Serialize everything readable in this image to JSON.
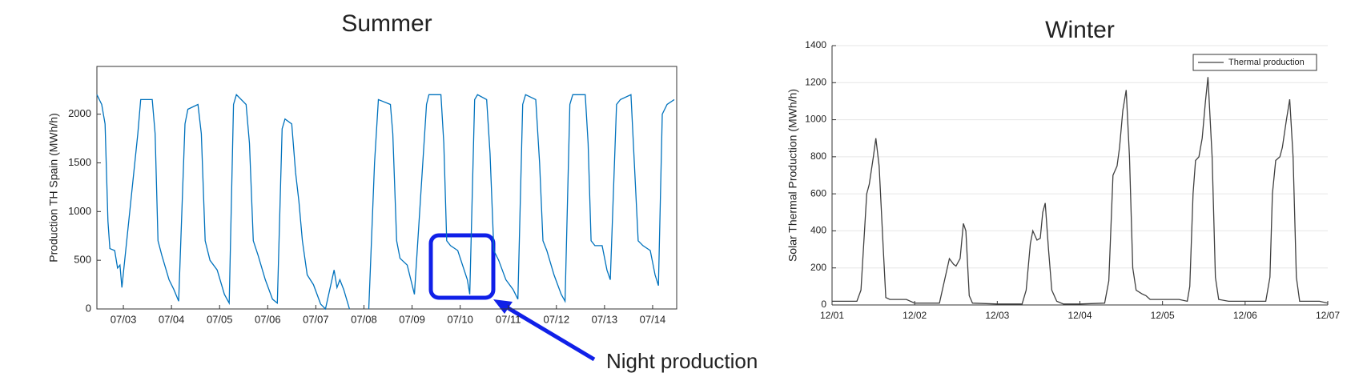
{
  "chart_data": [
    {
      "type": "line",
      "title": "Summer",
      "ylabel": "Production TH Spain (MWh/h)",
      "x": [
        2.45,
        2.55,
        2.62,
        2.68,
        2.72,
        2.82,
        2.88,
        2.93,
        2.97,
        3.3,
        3.36,
        3.6,
        3.66,
        3.72,
        3.8,
        3.95,
        4.05,
        4.15,
        4.28,
        4.34,
        4.55,
        4.62,
        4.7,
        4.8,
        4.95,
        5.1,
        5.2,
        5.29,
        5.35,
        5.55,
        5.62,
        5.7,
        5.8,
        5.95,
        6.1,
        6.2,
        6.3,
        6.36,
        6.5,
        6.58,
        6.65,
        6.72,
        6.82,
        6.95,
        7.1,
        7.2,
        7.38,
        7.44,
        7.5,
        7.58,
        7.7,
        7.9,
        8.1,
        8.22,
        8.3,
        8.55,
        8.6,
        8.68,
        8.75,
        8.9,
        9.05,
        9.3,
        9.35,
        9.6,
        9.66,
        9.72,
        9.8,
        9.95,
        10.15,
        10.2,
        10.3,
        10.36,
        10.55,
        10.62,
        10.7,
        10.8,
        10.95,
        11.1,
        11.2,
        11.3,
        11.36,
        11.57,
        11.65,
        11.72,
        11.8,
        11.95,
        12.1,
        12.18,
        12.28,
        12.34,
        12.6,
        12.66,
        12.72,
        12.8,
        12.95,
        13.05,
        13.12,
        13.25,
        13.33,
        13.55,
        13.62,
        13.7,
        13.8,
        13.95,
        14.05,
        14.12,
        14.2,
        14.3,
        14.45
      ],
      "series": [
        {
          "color": "#0072bd",
          "values": [
            2200,
            2100,
            1900,
            900,
            620,
            600,
            420,
            450,
            220,
            1800,
            2150,
            2150,
            1800,
            700,
            550,
            300,
            200,
            80,
            1900,
            2050,
            2100,
            1800,
            700,
            500,
            400,
            150,
            60,
            2100,
            2200,
            2100,
            1700,
            700,
            550,
            300,
            100,
            60,
            1850,
            1950,
            1900,
            1400,
            1100,
            700,
            350,
            250,
            50,
            0,
            400,
            220,
            300,
            200,
            0,
            null,
            0,
            1500,
            2150,
            2100,
            1800,
            700,
            520,
            450,
            150,
            2100,
            2200,
            2200,
            1700,
            700,
            650,
            600,
            300,
            150,
            2150,
            2200,
            2150,
            1600,
            600,
            500,
            300,
            200,
            100,
            2100,
            2200,
            2150,
            1500,
            700,
            600,
            350,
            150,
            80,
            2100,
            2200,
            2200,
            1700,
            700,
            650,
            650,
            400,
            300,
            2100,
            2150,
            2200,
            1500,
            700,
            650,
            600,
            350,
            240,
            2000,
            2100,
            2150
          ]
        }
      ],
      "xlim": [
        2.45,
        14.5
      ],
      "xticks": [
        {
          "value": 3,
          "label": "07/03"
        },
        {
          "value": 4,
          "label": "07/04"
        },
        {
          "value": 5,
          "label": "07/05"
        },
        {
          "value": 6,
          "label": "07/06"
        },
        {
          "value": 7,
          "label": "07/07"
        },
        {
          "value": 8,
          "label": "07/08"
        },
        {
          "value": 9,
          "label": "07/09"
        },
        {
          "value": 10,
          "label": "07/10"
        },
        {
          "value": 11,
          "label": "07/11"
        },
        {
          "value": 12,
          "label": "07/12"
        },
        {
          "value": 13,
          "label": "07/13"
        },
        {
          "value": 14,
          "label": "07/14"
        }
      ],
      "ylim": [
        0,
        2490
      ],
      "yticks": [
        0,
        500,
        1000,
        1500,
        2000
      ],
      "grid": false,
      "annotations": [
        "Night production"
      ]
    },
    {
      "type": "line",
      "title": "Winter",
      "ylabel": "Solar Thermal Production (MWh/h)",
      "x": [
        1.0,
        1.3,
        1.35,
        1.42,
        1.45,
        1.5,
        1.53,
        1.57,
        1.62,
        1.65,
        1.7,
        1.9,
        2.0,
        2.3,
        2.42,
        2.47,
        2.5,
        2.55,
        2.59,
        2.62,
        2.66,
        2.7,
        3.0,
        3.3,
        3.35,
        3.4,
        3.43,
        3.48,
        3.52,
        3.55,
        3.58,
        3.62,
        3.66,
        3.72,
        3.8,
        4.0,
        4.3,
        4.35,
        4.4,
        4.45,
        4.48,
        4.52,
        4.56,
        4.6,
        4.64,
        4.68,
        4.75,
        4.8,
        4.85,
        5.0,
        5.2,
        5.3,
        5.33,
        5.37,
        5.4,
        5.44,
        5.48,
        5.52,
        5.55,
        5.6,
        5.64,
        5.68,
        5.8,
        6.0,
        6.25,
        6.3,
        6.33,
        6.37,
        6.42,
        6.45,
        6.5,
        6.54,
        6.58,
        6.62,
        6.66,
        6.9,
        7.0
      ],
      "series": [
        {
          "name": "Thermal production",
          "color": "#404040",
          "values": [
            20,
            20,
            80,
            600,
            650,
            800,
            900,
            750,
            300,
            40,
            30,
            30,
            10,
            10,
            250,
            220,
            210,
            250,
            440,
            400,
            50,
            10,
            5,
            5,
            80,
            330,
            400,
            350,
            360,
            500,
            550,
            300,
            80,
            20,
            5,
            5,
            10,
            130,
            700,
            750,
            850,
            1050,
            1160,
            800,
            200,
            80,
            60,
            50,
            30,
            30,
            30,
            20,
            100,
            600,
            780,
            800,
            900,
            1100,
            1230,
            800,
            150,
            30,
            20,
            20,
            20,
            150,
            600,
            780,
            800,
            850,
            1000,
            1110,
            800,
            150,
            20,
            20,
            10
          ]
        }
      ],
      "xlim": [
        1,
        7
      ],
      "xticks": [
        {
          "value": 1,
          "label": "12/01"
        },
        {
          "value": 2,
          "label": "12/02"
        },
        {
          "value": 3,
          "label": "12/03"
        },
        {
          "value": 4,
          "label": "12/04"
        },
        {
          "value": 5,
          "label": "12/05"
        },
        {
          "value": 6,
          "label": "12/06"
        },
        {
          "value": 7,
          "label": "12/07"
        }
      ],
      "ylim": [
        0,
        1400
      ],
      "yticks": [
        0,
        200,
        400,
        600,
        800,
        1000,
        1200,
        1400
      ],
      "grid": true,
      "legend": "top-right"
    }
  ]
}
